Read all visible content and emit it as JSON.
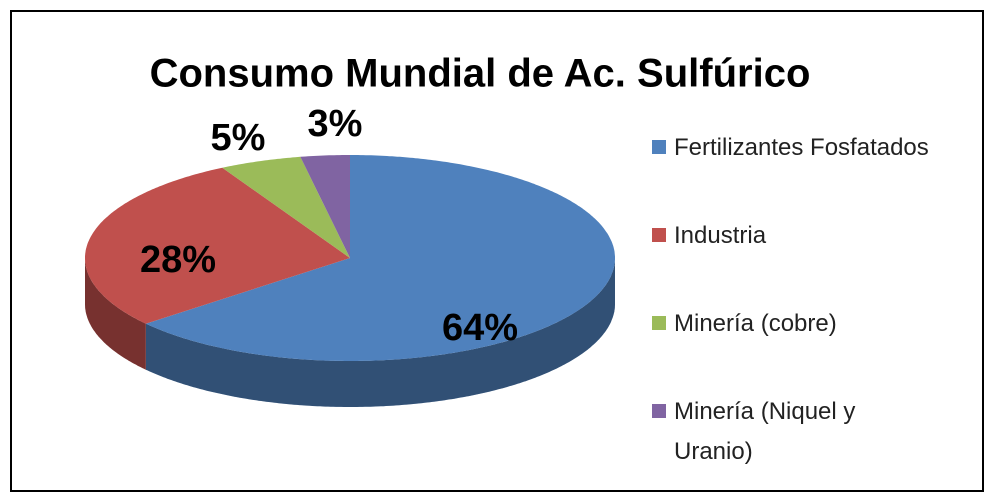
{
  "chart_data": {
    "type": "pie3d",
    "title": "Consumo Mundial de Ac. Sulfúrico",
    "categories": [
      "Fertilizantes Fosfatados",
      "Industria",
      "Minería (cobre)",
      "Minería (Niquel y Uranio)"
    ],
    "values": [
      64,
      28,
      5,
      3
    ],
    "value_labels": [
      "64%",
      "28%",
      "5%",
      "3%"
    ],
    "colors": [
      "#4f81bd",
      "#c0504d",
      "#9bbb59",
      "#8064a2"
    ],
    "legend": "right"
  }
}
